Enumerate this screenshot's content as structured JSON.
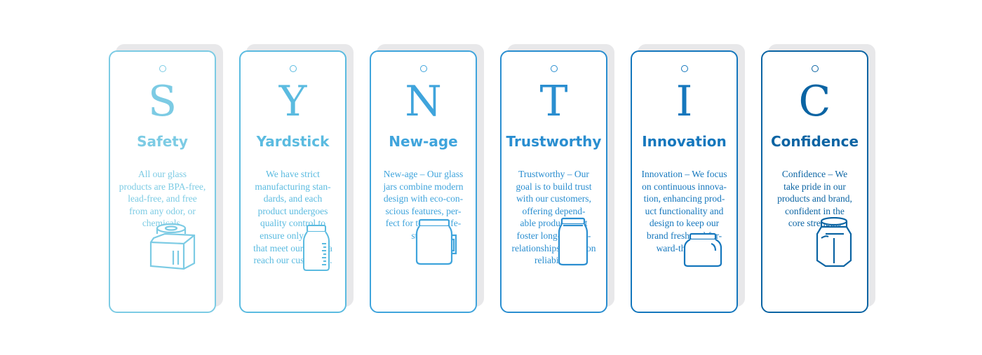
{
  "cards": [
    {
      "letter": "S",
      "title": "Safety",
      "color": "#7ccbe4",
      "icon": "square-jar-icon",
      "lines": [
        "All our glass",
        "products are BPA-free,",
        "lead-free, and free",
        "from any odor,  or",
        "chemicals."
      ]
    },
    {
      "letter": "Y",
      "title": "Yardstick",
      "color": "#5bbbe0",
      "icon": "measuring-bottle-icon",
      "lines": [
        "We have strict",
        "manufacturing stan-",
        "dards, and each",
        "product undergoes",
        "quality control to",
        "ensure only those",
        "that meet our criteria",
        "reach our customers."
      ]
    },
    {
      "letter": "N",
      "title": "New-age",
      "color": "#3fa4dc",
      "icon": "mug-jar-icon",
      "lines": [
        "New-age – Our glass",
        "jars combine modern",
        "design with eco-con-",
        "scious features, per-",
        "fect for today’s life-",
        "styles."
      ]
    },
    {
      "letter": "T",
      "title": "Trustworthy",
      "color": "#2a8ed0",
      "icon": "mason-jar-icon",
      "lines": [
        "Trustworthy – Our",
        "goal is to build trust",
        "with our customers,",
        "offering depend-",
        "able products that",
        "foster long-term re-",
        "relationships based on",
        "reliability."
      ]
    },
    {
      "letter": "I",
      "title": "Innovation",
      "color": "#1577bd",
      "icon": "short-jar-icon",
      "lines": [
        "Innovation – We focus",
        "on continuous innova-",
        "tion, enhancing prod-",
        "uct functionality and",
        "design to keep our",
        "brand fresh and for-",
        "ward-thinking."
      ]
    },
    {
      "letter": "C",
      "title": "Confidence",
      "color": "#0b64a3",
      "icon": "hexagonal-jar-icon",
      "lines": [
        "Confidence – We",
        "take pride in our",
        "products and brand,",
        "confident in the",
        "core strengths"
      ]
    }
  ]
}
